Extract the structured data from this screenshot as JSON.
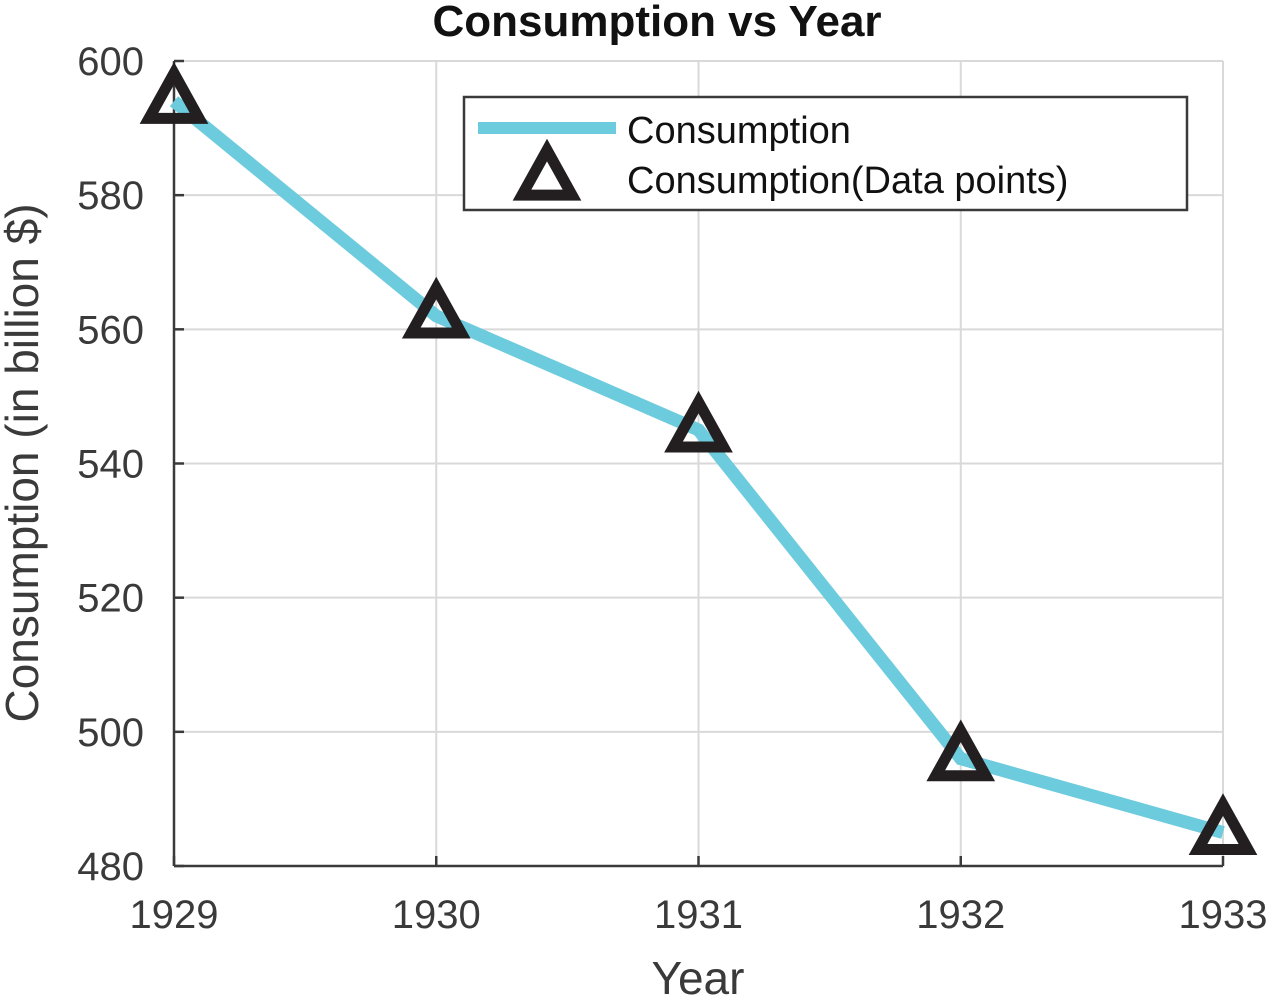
{
  "chart_data": {
    "type": "line",
    "title": "Consumption vs Year",
    "xlabel": "Year",
    "ylabel": "Consumption (in billion $)",
    "x": [
      1929,
      1930,
      1931,
      1932,
      1933
    ],
    "xticks": [
      "1929",
      "1930",
      "1931",
      "1932",
      "1933"
    ],
    "yticks": [
      "480",
      "500",
      "520",
      "540",
      "560",
      "580",
      "600"
    ],
    "xlim": [
      1929,
      1933
    ],
    "ylim": [
      480,
      600
    ],
    "grid": true,
    "legend_position": "top-right",
    "series": [
      {
        "name": "Consumption",
        "values": [
          594,
          562,
          545,
          496,
          485
        ],
        "style": "line",
        "color": "#6ccbdd"
      },
      {
        "name": "Consumption(Data points)",
        "values": [
          594,
          562,
          545,
          496,
          485
        ],
        "style": "markers",
        "marker": "triangle",
        "color": "#231f20"
      }
    ]
  }
}
